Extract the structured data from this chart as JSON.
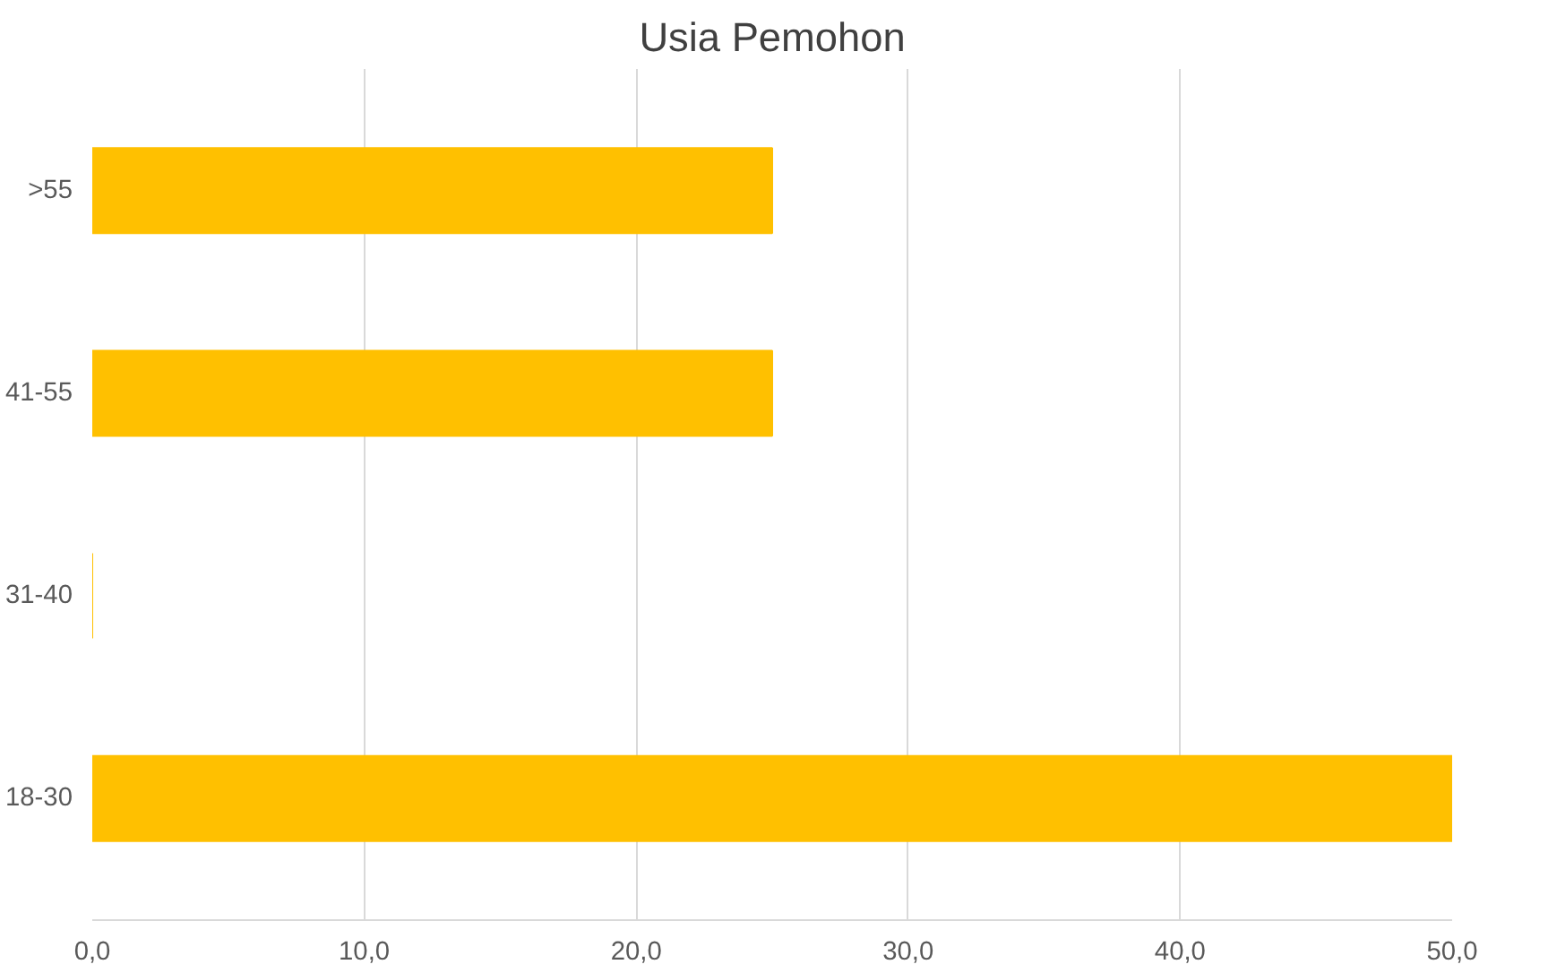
{
  "chart_data": {
    "type": "bar",
    "title": "Usia Pemohon",
    "orientation": "horizontal",
    "categories": [
      ">55",
      "41-55",
      "31-40",
      "18-30"
    ],
    "values": [
      25,
      25,
      0,
      50
    ],
    "color": "#ffc000",
    "xlim": [
      0,
      50
    ],
    "xticks": [
      {
        "value": 0,
        "label": "0,0"
      },
      {
        "value": 10,
        "label": "10,0"
      },
      {
        "value": 20,
        "label": "20,0"
      },
      {
        "value": 30,
        "label": "30,0"
      },
      {
        "value": 40,
        "label": "40,0"
      },
      {
        "value": 50,
        "label": "50,0"
      }
    ],
    "grid": "x"
  }
}
